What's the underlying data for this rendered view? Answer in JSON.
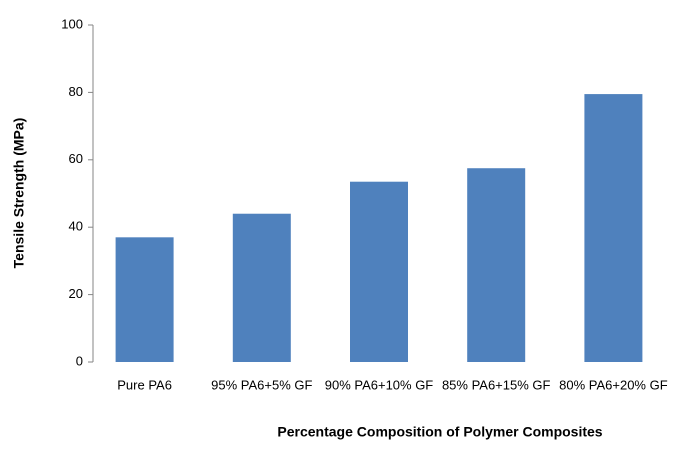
{
  "chart_data": {
    "type": "bar",
    "x_label": "Percentage Composition of Polymer Composites",
    "y_label": "Tensile Strength (MPa)",
    "categories": [
      "Pure PA6",
      "95% PA6+5% GF",
      "90% PA6+10% GF",
      "85% PA6+15% GF",
      "80% PA6+20% GF"
    ],
    "values": [
      37,
      44,
      53.5,
      57.5,
      79.5
    ],
    "color": "#4f81bd",
    "ylim": [
      0,
      100
    ],
    "yticks": [
      0,
      20,
      40,
      60,
      80,
      100
    ],
    "grid": false
  }
}
